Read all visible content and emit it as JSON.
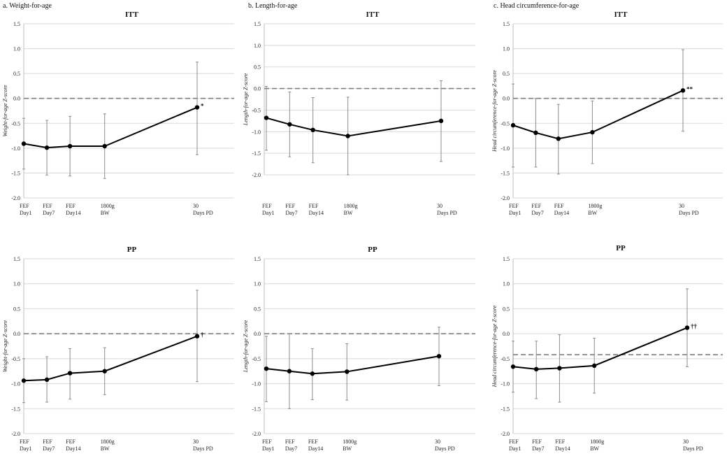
{
  "panel_titles": {
    "a": "a.  Weight-for-age",
    "b": "b.  Length-for-age",
    "c": "c.  Head circumference-for-age"
  },
  "chart_data": [
    {
      "id": "a-itt",
      "type": "line",
      "title": "ITT",
      "ylabel": "Weight-for-age Z-score",
      "ylim": [
        -2.0,
        1.5
      ],
      "yticks": [
        1.5,
        1.0,
        0.5,
        0.0,
        -0.5,
        -1.0,
        -1.5,
        -2.0
      ],
      "ytick_labels": [
        "1.5",
        "1.0",
        "0.5",
        "0.0",
        "-0.5",
        "-1.0",
        "-1.5",
        "-2.0"
      ],
      "categories": [
        [
          "FEF",
          "Day1"
        ],
        [
          "FEF",
          "Day7"
        ],
        [
          "FEF",
          "Day14"
        ],
        [
          "1800g",
          "BW"
        ],
        [
          "30",
          "Days PD"
        ]
      ],
      "x": [
        0,
        1,
        2,
        3.5,
        7.5
      ],
      "values": [
        -0.91,
        -0.99,
        -0.96,
        -0.96,
        -0.18
      ],
      "err_low": [
        -1.42,
        -1.54,
        -1.56,
        -1.61,
        -1.13
      ],
      "err_high": [
        -0.4,
        -0.44,
        -0.36,
        -0.31,
        0.73
      ],
      "reference": 0.0,
      "annotation": "*"
    },
    {
      "id": "a-pp",
      "type": "line",
      "title": "PP",
      "ylabel": "Weight-for-age Z-score",
      "ylim": [
        -2.0,
        1.5
      ],
      "yticks": [
        1.5,
        1.0,
        0.5,
        0.0,
        -0.5,
        -1.0,
        -1.5,
        -2.0
      ],
      "ytick_labels": [
        "1.5",
        "1.0",
        "0.5",
        "0.0",
        "-0.5",
        "-1.0",
        "-1.5",
        "-2.0"
      ],
      "categories": [
        [
          "FEF",
          "Day1"
        ],
        [
          "FEF",
          "Day7"
        ],
        [
          "FEF",
          "Day14"
        ],
        [
          "1800g",
          "BW"
        ],
        [
          "30",
          "Days PD"
        ]
      ],
      "x": [
        0,
        1,
        2,
        3.5,
        7.5
      ],
      "values": [
        -0.94,
        -0.92,
        -0.79,
        -0.75,
        -0.05
      ],
      "err_low": [
        -1.38,
        -1.37,
        -1.31,
        -1.22,
        -0.96
      ],
      "err_high": [
        -0.5,
        -0.46,
        -0.3,
        -0.28,
        0.87
      ],
      "reference": 0.0,
      "annotation": "†"
    },
    {
      "id": "b-itt",
      "type": "line",
      "title": "ITT",
      "ylabel": "Length-for-age Z-score",
      "ylim": [
        -2.0,
        1.5
      ],
      "yticks": [
        1.5,
        1.0,
        0.5,
        0.0,
        -0.5,
        -1.0,
        -1.5,
        -2.0
      ],
      "ytick_labels": [
        "1.5",
        "1.0",
        "0.5",
        "0.0",
        "-0.5",
        "-1.0",
        "-1.5",
        "-2.0"
      ],
      "categories": [
        [
          "FEF",
          "Day1"
        ],
        [
          "FEF",
          "Day7"
        ],
        [
          "FEF",
          "Day14"
        ],
        [
          "1800g",
          "BW"
        ],
        [
          "30",
          "Days PD"
        ]
      ],
      "x": [
        0,
        1,
        2,
        3.5,
        7.5
      ],
      "values": [
        -0.68,
        -0.83,
        -0.96,
        -1.1,
        -0.75
      ],
      "err_low": [
        -1.43,
        -1.58,
        -1.72,
        -2.0,
        -1.69
      ],
      "err_high": [
        0.05,
        -0.08,
        -0.21,
        -0.2,
        0.18
      ],
      "reference": 0.0,
      "annotation": ""
    },
    {
      "id": "b-pp",
      "type": "line",
      "title": "PP",
      "ylabel": "Length-for-age Z-score",
      "ylim": [
        -2.0,
        1.5
      ],
      "yticks": [
        1.5,
        1.0,
        0.5,
        0.0,
        -0.5,
        -1.0,
        -1.5,
        -2.0
      ],
      "ytick_labels": [
        "1.5",
        "1.0",
        "0.5",
        "0.0",
        "-0.5",
        "-1.0",
        "-1.5",
        "-2.0"
      ],
      "categories": [
        [
          "FEF",
          "Day1"
        ],
        [
          "FEF",
          "Day7"
        ],
        [
          "FEF",
          "Day14"
        ],
        [
          "1800g",
          "BW"
        ],
        [
          "30",
          "Days PD"
        ]
      ],
      "x": [
        0,
        1,
        2,
        3.5,
        7.5
      ],
      "values": [
        -0.7,
        -0.75,
        -0.8,
        -0.76,
        -0.45
      ],
      "err_low": [
        -1.36,
        -1.5,
        -1.32,
        -1.33,
        -1.04
      ],
      "err_high": [
        -0.05,
        0.0,
        -0.3,
        -0.2,
        0.13
      ],
      "reference": 0.0,
      "annotation": ""
    },
    {
      "id": "c-itt",
      "type": "line",
      "title": "ITT",
      "ylabel": "Head circumference-for-age Z-score",
      "ylim": [
        -2.0,
        1.5
      ],
      "yticks": [
        1.5,
        1.0,
        0.5,
        0.0,
        -0.5,
        -1.0,
        -1.5,
        -2.0
      ],
      "ytick_labels": [
        "1.5",
        "1.0",
        "0.5",
        "0.0",
        "-0.5",
        "-1.0",
        "-1.5",
        "-2.0"
      ],
      "categories": [
        [
          "FEF",
          "Day1"
        ],
        [
          "FEF",
          "Day7"
        ],
        [
          "FEF",
          "Day14"
        ],
        [
          "1800g",
          "BW"
        ],
        [
          "30",
          "Days PD"
        ]
      ],
      "x": [
        0,
        1,
        2,
        3.5,
        7.5
      ],
      "values": [
        -0.54,
        -0.69,
        -0.81,
        -0.68,
        0.16
      ],
      "err_low": [
        -1.38,
        -1.38,
        -1.52,
        -1.31,
        -0.66
      ],
      "err_high": [
        0.29,
        0.0,
        -0.12,
        -0.05,
        0.98
      ],
      "reference": 0.0,
      "annotation": "**"
    },
    {
      "id": "c-pp",
      "type": "line",
      "title": "PP",
      "ylabel": "Head circumference-for-age Z-score",
      "ylim": [
        -2.0,
        1.5
      ],
      "yticks": [
        1.5,
        1.0,
        0.5,
        0.0,
        -0.5,
        -1.0,
        -1.5,
        -2.0
      ],
      "ytick_labels": [
        "1.5",
        "1.0",
        "0.5",
        "0.0",
        "-0.5",
        "-1.0",
        "-1.5",
        "-2.0"
      ],
      "categories": [
        [
          "FEF",
          "Day1"
        ],
        [
          "FEF",
          "Day7"
        ],
        [
          "FEF",
          "Day14"
        ],
        [
          "1800g",
          "BW"
        ],
        [
          "30",
          "Days PD"
        ]
      ],
      "x": [
        0,
        1,
        2,
        3.5,
        7.5
      ],
      "values": [
        -0.66,
        -0.71,
        -0.69,
        -0.64,
        0.12
      ],
      "err_low": [
        -1.17,
        -1.3,
        -1.37,
        -1.19,
        -0.66
      ],
      "err_high": [
        -0.15,
        -0.15,
        -0.02,
        -0.09,
        0.9
      ],
      "reference": -0.42,
      "annotation": "††"
    }
  ]
}
